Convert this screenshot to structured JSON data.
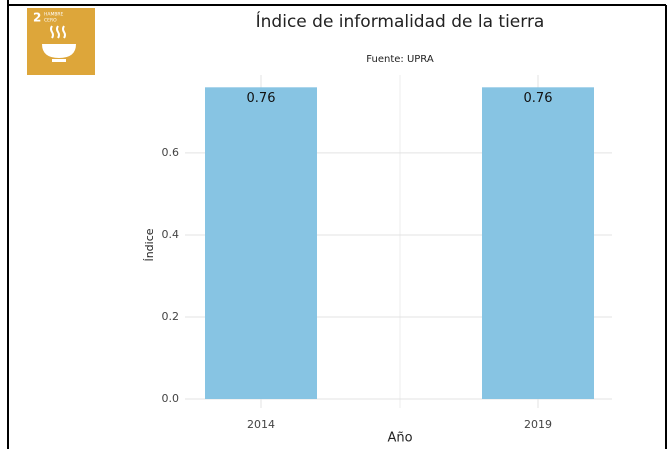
{
  "icon": {
    "number": "2",
    "label_line1": "HAMBRE",
    "label_line2": "CERO"
  },
  "chart_data": {
    "type": "bar",
    "title": "Índice de informalidad de la tierra",
    "subtitle": "Fuente: UPRA",
    "x_label": "Año",
    "y_label": "Índice",
    "categories": [
      "2014",
      "2019"
    ],
    "values": [
      0.76,
      0.76
    ],
    "color": "#87c4e3",
    "ylim": [
      0,
      0.79
    ],
    "yticks": [
      {
        "value": 0,
        "label": "0.0"
      },
      {
        "value": 0.2,
        "label": "0.2"
      },
      {
        "value": 0.4,
        "label": "0.4"
      },
      {
        "value": 0.6,
        "label": "0.6"
      }
    ],
    "grid": true
  }
}
